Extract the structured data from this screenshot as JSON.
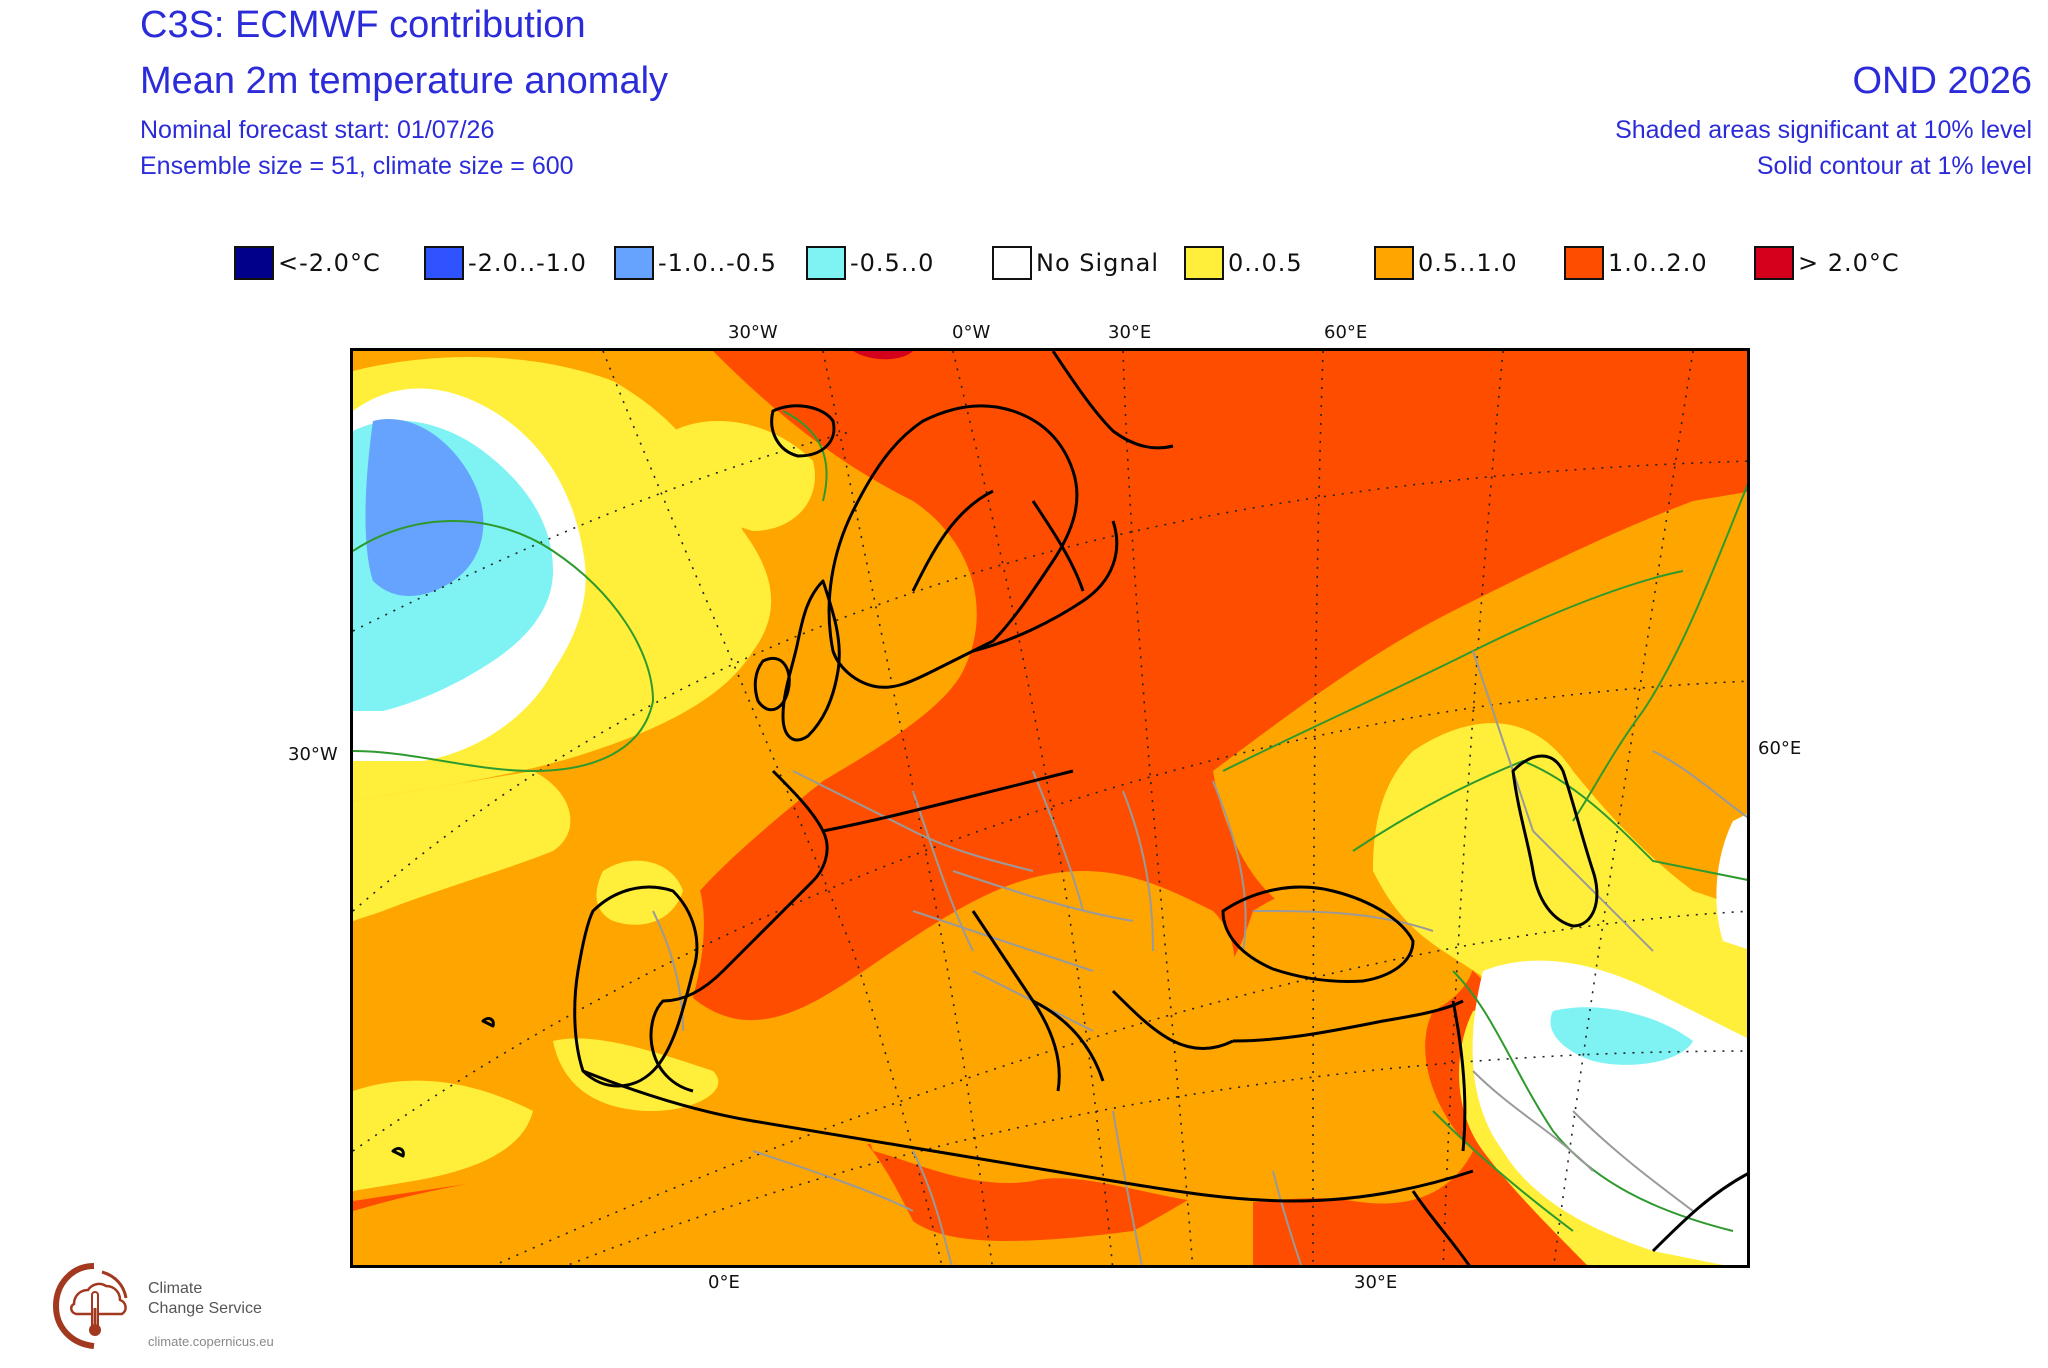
{
  "header": {
    "title_line1": "C3S: ECMWF contribution",
    "title_line2": "Mean 2m temperature anomaly",
    "forecast_start": "Nominal forecast start: 01/07/26",
    "ensemble": "Ensemble size = 51, climate size = 600",
    "period": "OND 2026",
    "significance_shaded": "Shaded areas significant at 10% level",
    "significance_contour": "Solid contour at 1% level"
  },
  "legend": [
    {
      "label": "<-2.0°C",
      "color": "#00008b"
    },
    {
      "label": "-2.0..-1.0",
      "color": "#2f54ff"
    },
    {
      "label": "-1.0..-0.5",
      "color": "#66a3ff"
    },
    {
      "label": "-0.5..0",
      "color": "#7ff3f3"
    },
    {
      "label": "No Signal",
      "color": "#ffffff"
    },
    {
      "label": "0..0.5",
      "color": "#ffef3a"
    },
    {
      "label": "0.5..1.0",
      "color": "#ffa500"
    },
    {
      "label": "1.0..2.0",
      "color": "#ff4d00"
    },
    {
      "label": "> 2.0°C",
      "color": "#d4001c"
    }
  ],
  "grid_labels": {
    "top": [
      "30°W",
      "0°W",
      "30°E",
      "60°E"
    ],
    "left": "30°W",
    "right": "60°E",
    "bottom": [
      "0°E",
      "30°E"
    ]
  },
  "logo": {
    "line1": "Climate",
    "line2": "Change Service",
    "url": "climate.copernicus.eu"
  }
}
